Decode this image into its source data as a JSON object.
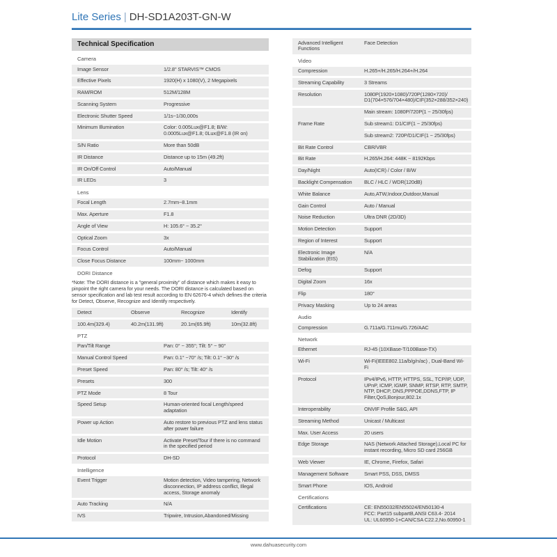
{
  "header": {
    "series": "Lite Series",
    "separator": "|",
    "model": "DH-SD1A203T-GN-W"
  },
  "footer": {
    "url": "www.dahuasecurity.com"
  },
  "colors": {
    "accent_blue": "#2e74b5",
    "row_bg": "#ececec",
    "bar_bg": "#d2d2d2",
    "text": "#3b3b3b",
    "section_text": "#4e4e4e",
    "footer_text": "#595959"
  },
  "left_column": {
    "title": "Technical Specification",
    "blocks": [
      {
        "type": "section",
        "text": "Camera"
      },
      {
        "type": "row",
        "label": "Image Sensor",
        "value": "1/2.8\" STARVIS™ CMOS"
      },
      {
        "type": "row",
        "label": "Effective Pixels",
        "value": "1920(H) x 1080(V), 2 Megapixels"
      },
      {
        "type": "row",
        "label": "RAM/ROM",
        "value": "512M/128M"
      },
      {
        "type": "row",
        "label": "Scanning System",
        "value": "Progressive"
      },
      {
        "type": "row",
        "label": "Electronic Shutter Speed",
        "value": "1/1s~1/30,000s"
      },
      {
        "type": "row",
        "label": "Minimum Illumination",
        "value": "Color: 0.005Lux@F1.8; B/W: 0.0005Lux@F1.8; 0Lux@F1.8 (IR on)"
      },
      {
        "type": "row",
        "label": "S/N Ratio",
        "value": "More than 50dB"
      },
      {
        "type": "row",
        "label": "IR Distance",
        "value": "Distance up to 15m (49.2ft)"
      },
      {
        "type": "row",
        "label": "IR On/Off Control",
        "value": "Auto/Manual"
      },
      {
        "type": "row",
        "label": "IR LEDs",
        "value": "3"
      },
      {
        "type": "section",
        "text": "Lens"
      },
      {
        "type": "row",
        "label": "Focal Length",
        "value": "2.7mm~8.1mm"
      },
      {
        "type": "row",
        "label": "Max. Aperture",
        "value": "F1.8"
      },
      {
        "type": "row",
        "label": "Angle of View",
        "value": "H: 105.6° ~ 35.2°"
      },
      {
        "type": "row",
        "label": "Optical Zoom",
        "value": "3x"
      },
      {
        "type": "row",
        "label": "Focus Control",
        "value": "Auto/Manual"
      },
      {
        "type": "row",
        "label": "Close Focus Distance",
        "value": "100mm~ 1000mm"
      },
      {
        "type": "section",
        "text": "DORI Distance"
      },
      {
        "type": "note",
        "text": "*Note: The DORI distance is a \"general proximity\" of distance which makes it easy to pinpoint the right camera for your needs. The DORI distance is calculated based on sensor specification and lab test result according to EN 62676-4 which defines the criteria for Detect, Observe, Recognize and Identify respectively."
      },
      {
        "type": "minitable",
        "headers": [
          "Detect",
          "Observe",
          "Recognize",
          "Identify"
        ],
        "values": [
          "100.4m(329.4)",
          "40.2m(131.9ft)",
          "20.1m(65.9ft)",
          "10m(32.8ft)"
        ]
      },
      {
        "type": "section",
        "text": "PTZ"
      },
      {
        "type": "row",
        "label": "Pan/Tilt Range",
        "value": "Pan: 0° ~ 355°; Tilt: 5° ~ 90°"
      },
      {
        "type": "row",
        "label": "Manual Control Speed",
        "value": "Pan: 0.1° ~70° /s; Tilt: 0.1° ~30° /s"
      },
      {
        "type": "row",
        "label": "Preset Speed",
        "value": "Pan: 80° /s; Tilt: 40° /s"
      },
      {
        "type": "row",
        "label": "Presets",
        "value": "300"
      },
      {
        "type": "row",
        "label": "PTZ Mode",
        "value": "8 Tour"
      },
      {
        "type": "row",
        "label": "Speed Setup",
        "value": "Human-oriented focal Length/speed adaptation"
      },
      {
        "type": "row",
        "label": "Power up Action",
        "value": "Auto restore to previous PTZ and lens status after power failure"
      },
      {
        "type": "row",
        "label": "Idle Motion",
        "value": "Activate Preset/Tour if there is no command in the specified period"
      },
      {
        "type": "row",
        "label": "Protocol",
        "value": "DH-SD"
      },
      {
        "type": "section",
        "text": "Intelligence"
      },
      {
        "type": "row",
        "label": "Event Trigger",
        "value": "Motion detection, Video tampering, Network disconnection, IP address conflict, Illegal access, Storage anomaly"
      },
      {
        "type": "row",
        "label": "Auto Tracking",
        "value": "N/A"
      },
      {
        "type": "row",
        "label": "IVS",
        "value": "Tripwire, Intrusion,Abandoned/Missing"
      }
    ]
  },
  "right_column": {
    "blocks": [
      {
        "type": "row",
        "label": "Advanced Intelligent Functions",
        "value": "Face Detection"
      },
      {
        "type": "section",
        "text": "Video"
      },
      {
        "type": "row",
        "label": "Compression",
        "value": "H.265+/H.265/H.264+/H.264"
      },
      {
        "type": "row",
        "label": "Streaming Capability",
        "value": "3 Streams"
      },
      {
        "type": "row",
        "label": "Resolution",
        "value_lines": [
          "1080P(1920×1080)/720P(1280×720)/",
          "D1(704×576/704×480)/CIF(352×288/352×240)"
        ]
      },
      {
        "type": "row",
        "label": "Frame Rate",
        "value_cells": [
          "Main stream: 1080P/720P(1 ~ 25/30fps)",
          "Sub stream1: D1/CIF(1 ~ 25/30fps)",
          "Sub stream2: 720P/D1/CIF(1 ~ 25/30fps)"
        ]
      },
      {
        "type": "row",
        "label": "Bit Rate Control",
        "value": "CBR/VBR"
      },
      {
        "type": "row",
        "label": "Bit Rate",
        "value": "H.265/H.264: 448K ~ 8192Kbps"
      },
      {
        "type": "row",
        "label": "Day/Night",
        "value": "Auto(ICR) / Color / B/W"
      },
      {
        "type": "row",
        "label": "Backlight Compensation",
        "value": "BLC / HLC / WDR(120dB)"
      },
      {
        "type": "row",
        "label": "White Balance",
        "value": "Auto,ATW,Indoor,Outdoor,Manual"
      },
      {
        "type": "row",
        "label": "Gain Control",
        "value": "Auto / Manual"
      },
      {
        "type": "row",
        "label": "Noise Reduction",
        "value": "Ultra DNR (2D/3D)"
      },
      {
        "type": "row",
        "label": "Motion Detection",
        "value": "Support"
      },
      {
        "type": "row",
        "label": "Region of Interest",
        "value": "Support"
      },
      {
        "type": "row",
        "label": "Electronic Image  Stabilization (EIS)",
        "value": "N/A"
      },
      {
        "type": "row",
        "label": "Defog",
        "value": "Support"
      },
      {
        "type": "row",
        "label": "Digital Zoom",
        "value": "16x"
      },
      {
        "type": "row",
        "label": "Flip",
        "value": "180°"
      },
      {
        "type": "row",
        "label": "Privacy Masking",
        "value": "Up to 24 areas"
      },
      {
        "type": "section",
        "text": "Audio"
      },
      {
        "type": "row",
        "label": "Compression",
        "value": "G.711a/G.711mu/G.726/AAC"
      },
      {
        "type": "section",
        "text": "Network"
      },
      {
        "type": "row",
        "label": "Ethernet",
        "value": "RJ-45 (10XBase-T/100Base-TX)"
      },
      {
        "type": "row",
        "label": "Wi-Fi",
        "value": "Wi-Fi(IEEE802.11a/b/g/n/ac) , Dual-Band Wi-Fi"
      },
      {
        "type": "row",
        "label": "Protocol",
        "value": "IPv4/IPv6, HTTP, HTTPS, SSL, TCP/IP, UDP, UPnP, ICMP, IGMP, SNMP, RTSP, RTP, SMTP, NTP, DHCP, DNS,PPPOE,DDNS,FTP, IP Filter,QoS,Bonjour,802.1x"
      },
      {
        "type": "row",
        "label": "Interoperability",
        "value": "ONVIF Profile S&G, API"
      },
      {
        "type": "row",
        "label": "Streaming Method",
        "value": "Unicast / Multicast"
      },
      {
        "type": "row",
        "label": "Max. User Access",
        "value": "20 users"
      },
      {
        "type": "row",
        "label": "Edge Storage",
        "value": "NAS (Network Attached Storage),Local PC for instant recording, Micro SD card 256GB"
      },
      {
        "type": "row",
        "label": "Web Viewer",
        "value": "IE, Chrome, Firefox, Safari"
      },
      {
        "type": "row",
        "label": "Management Software",
        "value": "Smart PSS, DSS, DMSS"
      },
      {
        "type": "row",
        "label": "Smart Phone",
        "value": "IOS, Android"
      },
      {
        "type": "section",
        "text": "Certifications"
      },
      {
        "type": "row",
        "label": "Certifications",
        "value_lines": [
          "CE: EN55032/EN55024/EN50130-4",
          "FCC: Part15 subpartB,ANSI C63.4- 2014",
          "UL: UL60950-1+CAN/CSA C22.2,No.60950-1"
        ]
      }
    ]
  }
}
